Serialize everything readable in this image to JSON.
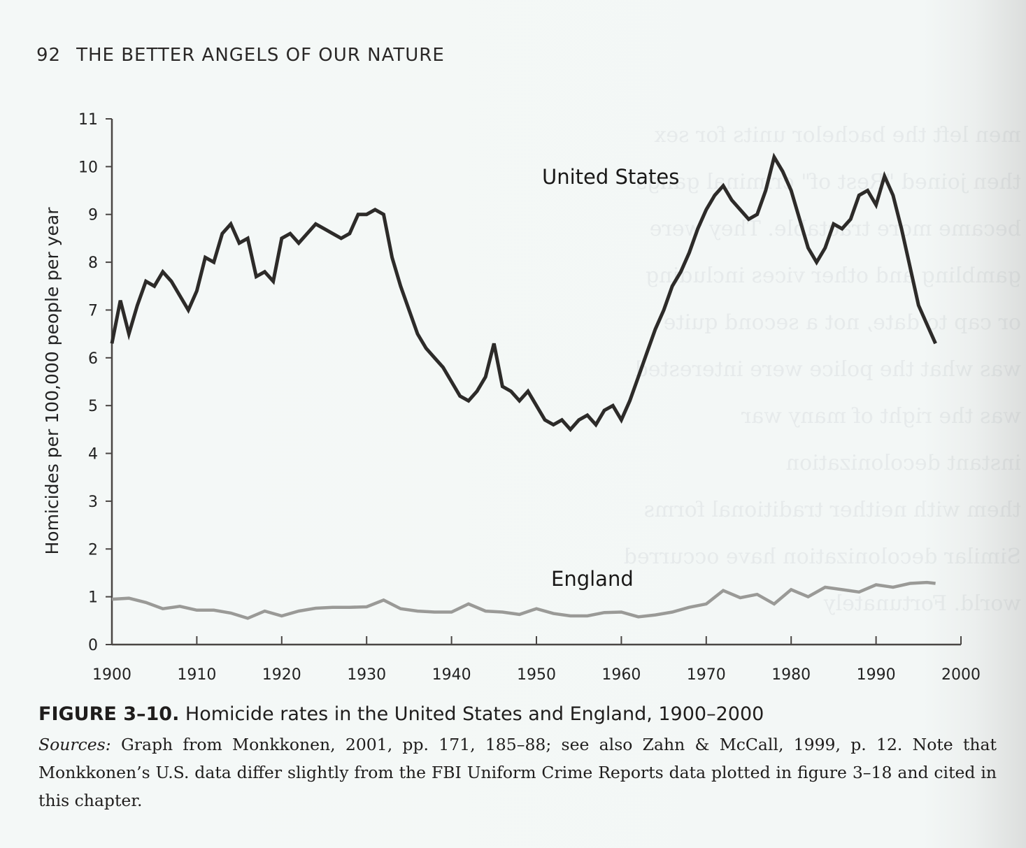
{
  "page": {
    "page_number": "92",
    "running_head": "THE BETTER ANGELS OF OUR NATURE"
  },
  "caption": {
    "figure_number": "FIGURE 3–10.",
    "title": "Homicide rates in the United States and England, 1900–2000",
    "sources_label": "Sources:",
    "sources_text": "Graph from Monkkonen, 2001, pp. 171, 185–88; see also Zahn & McCall, 1999, p. 12. Note that Monkkonen’s U.S. data differ slightly from the FBI Uniform Crime Reports data plotted in figure 3–18 and cited in this chapter."
  },
  "chart_data": {
    "type": "line",
    "title": "Homicide rates in the United States and England, 1900–2000",
    "xlabel": "",
    "ylabel": "Homicides per 100,000 people per year",
    "xlim": [
      1900,
      2000
    ],
    "ylim": [
      0,
      11
    ],
    "x_ticks": [
      "1900",
      "1910",
      "1920",
      "1930",
      "1940",
      "1950",
      "1960",
      "1970",
      "1980",
      "1990",
      "2000"
    ],
    "y_ticks": [
      "0",
      "1",
      "2",
      "3",
      "4",
      "5",
      "6",
      "7",
      "8",
      "9",
      "10",
      "11"
    ],
    "grid": false,
    "legend": "inline labels",
    "series": [
      {
        "name": "United States",
        "label": "United States",
        "color": "#2d2b29",
        "x": [
          1900,
          1901,
          1902,
          1903,
          1904,
          1905,
          1906,
          1907,
          1908,
          1909,
          1910,
          1911,
          1912,
          1913,
          1914,
          1915,
          1916,
          1917,
          1918,
          1919,
          1920,
          1921,
          1922,
          1923,
          1924,
          1925,
          1926,
          1927,
          1928,
          1929,
          1930,
          1931,
          1932,
          1933,
          1934,
          1935,
          1936,
          1937,
          1938,
          1939,
          1940,
          1941,
          1942,
          1943,
          1944,
          1945,
          1946,
          1947,
          1948,
          1949,
          1950,
          1951,
          1952,
          1953,
          1954,
          1955,
          1956,
          1957,
          1958,
          1959,
          1960,
          1961,
          1962,
          1963,
          1964,
          1965,
          1966,
          1967,
          1968,
          1969,
          1970,
          1971,
          1972,
          1973,
          1974,
          1975,
          1976,
          1977,
          1978,
          1979,
          1980,
          1981,
          1982,
          1983,
          1984,
          1985,
          1986,
          1987,
          1988,
          1989,
          1990,
          1991,
          1992,
          1993,
          1994,
          1995,
          1996,
          1997
        ],
        "values": [
          6.3,
          7.2,
          6.5,
          7.1,
          7.6,
          7.5,
          7.8,
          7.6,
          7.3,
          7.0,
          7.4,
          8.1,
          8.0,
          8.6,
          8.8,
          8.4,
          8.5,
          7.7,
          7.8,
          7.6,
          8.5,
          8.6,
          8.4,
          8.6,
          8.8,
          8.7,
          8.6,
          8.5,
          8.6,
          9.0,
          9.0,
          9.1,
          9.0,
          8.1,
          7.5,
          7.0,
          6.5,
          6.2,
          6.0,
          5.8,
          5.5,
          5.2,
          5.1,
          5.3,
          5.6,
          6.3,
          5.4,
          5.3,
          5.1,
          5.3,
          5.0,
          4.7,
          4.6,
          4.7,
          4.5,
          4.7,
          4.8,
          4.6,
          4.9,
          5.0,
          4.7,
          5.1,
          5.6,
          6.1,
          6.6,
          7.0,
          7.5,
          7.8,
          8.2,
          8.7,
          9.1,
          9.4,
          9.6,
          9.3,
          9.1,
          8.9,
          9.0,
          9.5,
          10.2,
          9.9,
          9.5,
          8.9,
          8.3,
          8.0,
          8.3,
          8.8,
          8.7,
          8.9,
          9.4,
          9.5,
          9.2,
          9.8,
          9.4,
          8.7,
          7.9,
          7.1,
          6.7,
          6.3
        ]
      },
      {
        "name": "England",
        "label": "England",
        "color": "#9a9a97",
        "x": [
          1900,
          1902,
          1904,
          1906,
          1908,
          1910,
          1912,
          1914,
          1916,
          1918,
          1920,
          1922,
          1924,
          1926,
          1928,
          1930,
          1932,
          1934,
          1936,
          1938,
          1940,
          1942,
          1944,
          1946,
          1948,
          1950,
          1952,
          1954,
          1956,
          1958,
          1960,
          1962,
          1964,
          1966,
          1968,
          1970,
          1972,
          1974,
          1976,
          1978,
          1980,
          1982,
          1984,
          1986,
          1988,
          1990,
          1992,
          1994,
          1996,
          1997
        ],
        "values": [
          0.95,
          0.97,
          0.88,
          0.75,
          0.8,
          0.72,
          0.72,
          0.66,
          0.55,
          0.7,
          0.6,
          0.7,
          0.76,
          0.78,
          0.78,
          0.79,
          0.93,
          0.75,
          0.7,
          0.68,
          0.68,
          0.85,
          0.7,
          0.68,
          0.63,
          0.75,
          0.65,
          0.6,
          0.6,
          0.67,
          0.68,
          0.58,
          0.62,
          0.68,
          0.78,
          0.85,
          1.13,
          0.98,
          1.05,
          0.85,
          1.15,
          1.0,
          1.2,
          1.15,
          1.1,
          1.25,
          1.2,
          1.28,
          1.3,
          1.28
        ]
      }
    ]
  }
}
